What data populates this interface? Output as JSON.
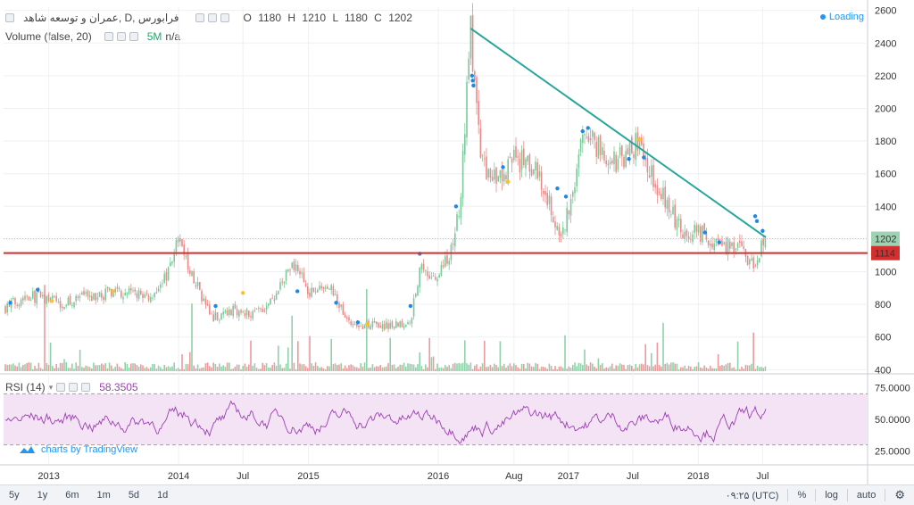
{
  "header": {
    "symbol_title": "عمران و توسعه شاهد, D, فرابورس",
    "ohlc": {
      "o_label": "O",
      "o": "1180",
      "h_label": "H",
      "h": "1210",
      "l_label": "L",
      "l": "1180",
      "c_label": "C",
      "c": "1202"
    },
    "volume_label": "Volume (false, 20)",
    "volume_value": "5M",
    "volume_na": "n/a",
    "loading": "Loading"
  },
  "rsi": {
    "label": "RSI (14)",
    "value": "58.3505"
  },
  "brand": "charts by TradingView",
  "bottom_bar": {
    "timeframes": [
      "5y",
      "1y",
      "6m",
      "1m",
      "5d",
      "1d"
    ],
    "clock": "۰۹:۲۵ (UTC)",
    "percent": "%",
    "log": "log",
    "auto": "auto"
  },
  "colors": {
    "up": "#7bc99a",
    "down": "#e98a8a",
    "trendline": "#26a69a",
    "support": "#d32f2f",
    "rsi_line": "#9c3fb3",
    "rsi_band": "#f3e3f5",
    "marker_blue": "#1e88e5",
    "marker_yellow": "#fbc02d"
  },
  "chart_data": [
    {
      "type": "line",
      "subtype": "candlestick-daily",
      "ylim": [
        380,
        2620
      ],
      "yticks": [
        400,
        600,
        800,
        1000,
        1200,
        1400,
        1600,
        1800,
        2000,
        2200,
        2400,
        2600
      ],
      "x_tick_labels": [
        "2013",
        "2014",
        "Jul",
        "2015",
        "2016",
        "Aug",
        "2017",
        "Jul",
        "2018",
        "Jul"
      ],
      "x_ticks_date": [
        "2013-01-01",
        "2014-01-01",
        "2014-07-01",
        "2015-01-01",
        "2016-01-01",
        "2016-08-01",
        "2017-01-01",
        "2017-07-01",
        "2018-01-01",
        "2018-07-01"
      ],
      "last_price": 1202,
      "support_level": 1114,
      "approx_close_series": [
        {
          "date": "2012-09-01",
          "close": 780
        },
        {
          "date": "2012-11-01",
          "close": 860
        },
        {
          "date": "2013-02-01",
          "close": 810
        },
        {
          "date": "2013-05-01",
          "close": 850
        },
        {
          "date": "2013-08-01",
          "close": 880
        },
        {
          "date": "2013-11-01",
          "close": 840
        },
        {
          "date": "2014-01-01",
          "close": 1180
        },
        {
          "date": "2014-02-15",
          "close": 950
        },
        {
          "date": "2014-04-01",
          "close": 720
        },
        {
          "date": "2014-06-01",
          "close": 760
        },
        {
          "date": "2014-08-01",
          "close": 750
        },
        {
          "date": "2014-10-01",
          "close": 830
        },
        {
          "date": "2014-11-15",
          "close": 1080
        },
        {
          "date": "2015-01-01",
          "close": 880
        },
        {
          "date": "2015-03-01",
          "close": 900
        },
        {
          "date": "2015-05-01",
          "close": 680
        },
        {
          "date": "2015-08-01",
          "close": 670
        },
        {
          "date": "2015-10-15",
          "close": 700
        },
        {
          "date": "2015-11-15",
          "close": 1050
        },
        {
          "date": "2015-12-15",
          "close": 920
        },
        {
          "date": "2016-02-01",
          "close": 1100
        },
        {
          "date": "2016-03-01",
          "close": 1380
        },
        {
          "date": "2016-04-01",
          "close": 2480
        },
        {
          "date": "2016-05-01",
          "close": 1650
        },
        {
          "date": "2016-06-15",
          "close": 1550
        },
        {
          "date": "2016-08-01",
          "close": 1700
        },
        {
          "date": "2016-10-01",
          "close": 1620
        },
        {
          "date": "2016-12-15",
          "close": 1200
        },
        {
          "date": "2017-02-15",
          "close": 1880
        },
        {
          "date": "2017-05-01",
          "close": 1650
        },
        {
          "date": "2017-07-15",
          "close": 1780
        },
        {
          "date": "2017-09-15",
          "close": 1500
        },
        {
          "date": "2017-11-15",
          "close": 1250
        },
        {
          "date": "2018-01-15",
          "close": 1230
        },
        {
          "date": "2018-03-15",
          "close": 1160
        },
        {
          "date": "2018-05-01",
          "close": 1130
        },
        {
          "date": "2018-06-01",
          "close": 1040
        },
        {
          "date": "2018-07-10",
          "close": 1202
        }
      ],
      "trendline": [
        {
          "date": "2016-04-01",
          "price": 2490
        },
        {
          "date": "2018-07-10",
          "price": 1210
        }
      ]
    },
    {
      "type": "area",
      "name": "RSI (14)",
      "ylim": [
        15,
        85
      ],
      "yticks": [
        25,
        50,
        75
      ],
      "ytick_labels": [
        "25.0000",
        "50.0000",
        "75.0000"
      ],
      "bands": [
        30,
        70
      ],
      "last_value": 58.3505
    }
  ]
}
